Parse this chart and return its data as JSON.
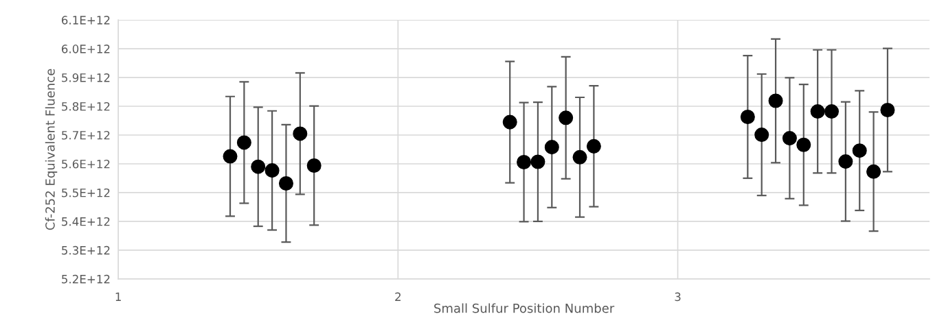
{
  "chart_data": {
    "type": "scatter",
    "xlabel": "Small Sulfur Position Number",
    "ylabel": "Cf-252 Equivalent Fluence",
    "x": [
      1.4,
      1.45,
      1.5,
      1.55,
      1.6,
      1.65,
      1.7,
      2.4,
      2.45,
      2.5,
      2.55,
      2.6,
      2.65,
      2.7,
      3.25,
      3.3,
      3.35,
      3.4,
      3.45,
      3.5,
      3.55,
      3.6,
      3.65,
      3.7,
      3.75
    ],
    "series": [
      {
        "color": "#000000",
        "values": [
          5626000000000.0,
          5674000000000.0,
          5590000000000.0,
          5577000000000.0,
          5532000000000.0,
          5705000000000.0,
          5594000000000.0,
          5745000000000.0,
          5606000000000.0,
          5607000000000.0,
          5658000000000.0,
          5760000000000.0,
          5623000000000.0,
          5661000000000.0,
          5763000000000.0,
          5701000000000.0,
          5819000000000.0,
          5689000000000.0,
          5666000000000.0,
          5782000000000.0,
          5782000000000.0,
          5608000000000.0,
          5646000000000.0,
          5573000000000.0,
          5787000000000.0
        ],
        "errors": [
          208000000000.0,
          211000000000.0,
          207000000000.0,
          207000000000.0,
          204000000000.0,
          211000000000.0,
          207000000000.0,
          211000000000.0,
          207000000000.0,
          207000000000.0,
          210000000000.0,
          212000000000.0,
          208000000000.0,
          210000000000.0,
          213000000000.0,
          211000000000.0,
          215000000000.0,
          210000000000.0,
          210000000000.0,
          214000000000.0,
          214000000000.0,
          207000000000.0,
          208000000000.0,
          207000000000.0,
          214000000000.0
        ]
      }
    ],
    "xlim": [
      1,
      3.9
    ],
    "xticks": [
      1,
      2,
      3
    ],
    "ylim": [
      5200000000000.0,
      6100000000000.0
    ],
    "yticks": [
      {
        "value": 5200000000000.0,
        "label": "5.2E+12"
      },
      {
        "value": 5300000000000.0,
        "label": "5.3E+12"
      },
      {
        "value": 5400000000000.0,
        "label": "5.4E+12"
      },
      {
        "value": 5500000000000.0,
        "label": "5.5E+12"
      },
      {
        "value": 5600000000000.0,
        "label": "5.6E+12"
      },
      {
        "value": 5700000000000.0,
        "label": "5.7E+12"
      },
      {
        "value": 5800000000000.0,
        "label": "5.8E+12"
      },
      {
        "value": 5900000000000.0,
        "label": "5.9E+12"
      },
      {
        "value": 6000000000000.0,
        "label": "6.0E+12"
      },
      {
        "value": 6100000000000.0,
        "label": "6.1E+12"
      }
    ],
    "grid": true,
    "marker": "circle"
  }
}
